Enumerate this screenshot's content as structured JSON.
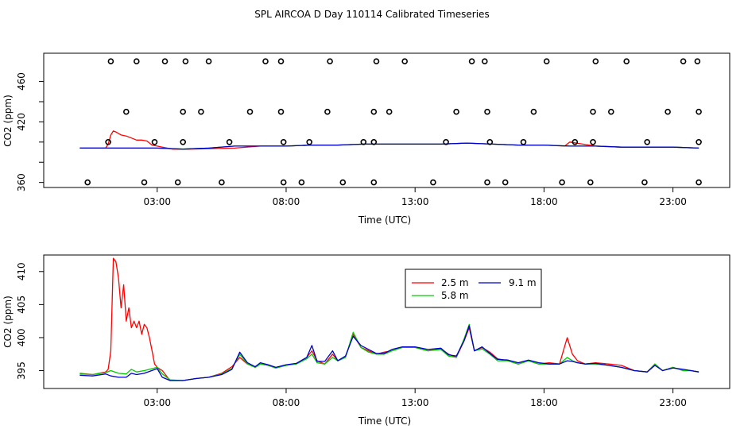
{
  "title": "SPL AIRCOA D  Day 110114  Calibrated Timeseries",
  "chart_data": [
    {
      "type": "line",
      "xlabel": "Time (UTC)",
      "ylabel": "CO2 (ppm)",
      "x_ticks": [
        "03:00",
        "08:00",
        "13:00",
        "18:00",
        "23:00"
      ],
      "x_tick_hours": [
        3,
        8,
        13,
        18,
        23
      ],
      "xlim_hours": [
        -1.4,
        25.2
      ],
      "y_ticks": [
        360,
        380,
        400,
        420,
        440,
        460
      ],
      "y_tick_labels": [
        "360",
        "",
        "",
        "420",
        "",
        "460"
      ],
      "ylim": [
        355,
        488
      ],
      "series": [
        {
          "color": "#ff0000",
          "x": [
            0,
            1,
            1.1,
            1.2,
            1.3,
            1.4,
            1.6,
            1.8,
            2.0,
            2.2,
            2.4,
            2.6,
            2.8,
            3.0,
            3.2,
            3.6,
            4.2,
            6,
            7,
            8,
            9,
            10,
            11,
            12,
            13,
            14,
            15,
            16,
            17,
            18,
            18.8,
            19.0,
            19.5,
            20,
            21,
            22,
            23,
            24
          ],
          "y": [
            394,
            394,
            398,
            407,
            411,
            410,
            407,
            406,
            404,
            402,
            402,
            401,
            397,
            396,
            395,
            393,
            393,
            394,
            396,
            396,
            397,
            397,
            398,
            398,
            398,
            398,
            399,
            398,
            397,
            397,
            396,
            400,
            398,
            396,
            395,
            395,
            395,
            394
          ]
        },
        {
          "color": "#00cc00",
          "x": [
            0,
            1,
            2,
            3,
            4,
            5,
            6,
            7,
            8,
            9,
            10,
            11,
            12,
            13,
            14,
            15,
            16,
            17,
            18,
            19,
            20,
            21,
            22,
            23,
            24
          ],
          "y": [
            394,
            394,
            394,
            394,
            393,
            394,
            396,
            396,
            396,
            397,
            397,
            398,
            398,
            398,
            398,
            399,
            398,
            397,
            397,
            396,
            396,
            395,
            395,
            395,
            394
          ]
        },
        {
          "color": "#0000cc",
          "x": [
            0,
            1,
            2,
            3,
            4,
            5,
            6,
            7,
            8,
            9,
            10,
            11,
            12,
            13,
            14,
            15,
            16,
            17,
            18,
            19,
            20,
            21,
            22,
            23,
            24
          ],
          "y": [
            394,
            394,
            394,
            394,
            393,
            394,
            396,
            396,
            396,
            397,
            397,
            398,
            398,
            398,
            398,
            399,
            398,
            397,
            397,
            396,
            396,
            395,
            395,
            395,
            394
          ]
        }
      ],
      "points": {
        "x": [
          1.2,
          2.2,
          3.3,
          4.1,
          5.0,
          7.2,
          7.8,
          9.7,
          11.5,
          12.6,
          15.2,
          15.7,
          18.1,
          20.0,
          21.2,
          23.4,
          23.95,
          1.8,
          4.0,
          4.7,
          6.6,
          7.8,
          9.6,
          11.4,
          12.0,
          14.6,
          15.8,
          17.6,
          19.9,
          20.6,
          22.8,
          24.0,
          1.1,
          2.9,
          4.0,
          5.8,
          7.9,
          8.9,
          11.0,
          11.4,
          14.2,
          15.9,
          17.2,
          19.2,
          19.9,
          22.0,
          24.0,
          0.3,
          2.5,
          3.8,
          5.5,
          7.9,
          8.6,
          10.2,
          11.4,
          13.7,
          15.8,
          16.5,
          18.7,
          19.8,
          21.9,
          24.0
        ],
        "y": [
          480,
          480,
          480,
          480,
          480,
          480,
          480,
          480,
          480,
          480,
          480,
          480,
          480,
          480,
          480,
          480,
          480,
          430,
          430,
          430,
          430,
          430,
          430,
          430,
          430,
          430,
          430,
          430,
          430,
          430,
          430,
          430,
          400,
          400,
          400,
          400,
          400,
          400,
          400,
          400,
          400,
          400,
          400,
          400,
          400,
          400,
          400,
          360,
          360,
          360,
          360,
          360,
          360,
          360,
          360,
          360,
          360,
          360,
          360,
          360,
          360,
          360
        ]
      }
    },
    {
      "type": "line",
      "xlabel": "Time (UTC)",
      "ylabel": "CO2 (ppm)",
      "x_ticks": [
        "03:00",
        "08:00",
        "13:00",
        "18:00",
        "23:00"
      ],
      "x_tick_hours": [
        3,
        8,
        13,
        18,
        23
      ],
      "xlim_hours": [
        -1.4,
        25.2
      ],
      "y_ticks": [
        395,
        400,
        405,
        410
      ],
      "y_tick_labels": [
        "395",
        "400",
        "405",
        "410"
      ],
      "ylim": [
        392.3,
        412.5
      ],
      "legend": {
        "position": "top-center",
        "entries": [
          "2.5 m",
          "5.8 m",
          "9.1 m"
        ]
      },
      "series": [
        {
          "name": "2.5 m",
          "color": "#ff0000",
          "x": [
            0,
            0.5,
            1.0,
            1.1,
            1.2,
            1.3,
            1.4,
            1.5,
            1.6,
            1.7,
            1.8,
            1.9,
            2.0,
            2.1,
            2.2,
            2.3,
            2.4,
            2.5,
            2.6,
            2.7,
            2.8,
            2.9,
            3.0,
            3.2,
            3.5,
            4.0,
            4.5,
            5.0,
            5.5,
            5.9,
            6.2,
            6.5,
            6.8,
            7.0,
            7.3,
            7.6,
            8.0,
            8.4,
            8.8,
            9.0,
            9.2,
            9.5,
            9.8,
            10.0,
            10.3,
            10.6,
            10.9,
            11.2,
            11.5,
            11.8,
            12.1,
            12.5,
            13.0,
            13.5,
            14.0,
            14.3,
            14.6,
            14.9,
            15.1,
            15.3,
            15.6,
            15.9,
            16.2,
            16.6,
            17.0,
            17.4,
            17.8,
            18.2,
            18.6,
            18.9,
            19.1,
            19.3,
            19.6,
            20.0,
            20.5,
            21.0,
            21.5,
            22.0,
            22.3,
            22.6,
            23.0,
            23.4,
            23.7,
            24.0
          ],
          "y": [
            394.6,
            394.4,
            394.8,
            395.2,
            398.0,
            412.0,
            411.5,
            409.0,
            404.5,
            408.0,
            402.5,
            404.5,
            401.5,
            402.5,
            401.5,
            402.5,
            400.5,
            402.0,
            401.5,
            400.0,
            398.0,
            396.0,
            395.5,
            395.0,
            393.5,
            393.5,
            393.8,
            394.0,
            394.6,
            395.6,
            397.0,
            396.0,
            395.5,
            396.0,
            395.8,
            395.4,
            395.8,
            396.1,
            397.0,
            398.0,
            396.5,
            396.0,
            397.5,
            396.5,
            397.0,
            400.5,
            398.5,
            398.0,
            397.5,
            397.8,
            398.0,
            398.5,
            398.5,
            398.0,
            398.3,
            397.5,
            397.0,
            399.5,
            401.5,
            398.0,
            398.5,
            397.8,
            396.8,
            396.5,
            396.0,
            396.5,
            396.0,
            396.2,
            396.0,
            400.0,
            397.5,
            396.5,
            396.0,
            396.2,
            396.0,
            395.8,
            395.0,
            394.8,
            396.0,
            395.0,
            395.5,
            395.0,
            395.0,
            394.8
          ]
        },
        {
          "name": "5.8 m",
          "color": "#00cc00",
          "x": [
            0,
            0.5,
            1.0,
            1.2,
            1.5,
            1.8,
            2.0,
            2.2,
            2.5,
            3.0,
            3.2,
            3.5,
            4.0,
            4.5,
            5.0,
            5.5,
            5.9,
            6.2,
            6.5,
            6.8,
            7.0,
            7.3,
            7.6,
            8.0,
            8.4,
            8.8,
            9.0,
            9.2,
            9.5,
            9.8,
            10.0,
            10.3,
            10.6,
            10.9,
            11.2,
            11.5,
            11.8,
            12.1,
            12.5,
            13.0,
            13.5,
            14.0,
            14.3,
            14.6,
            14.9,
            15.1,
            15.3,
            15.6,
            15.9,
            16.2,
            16.6,
            17.0,
            17.4,
            17.8,
            18.2,
            18.6,
            18.9,
            19.1,
            19.3,
            19.6,
            20.0,
            20.5,
            21.0,
            21.5,
            22.0,
            22.3,
            22.6,
            23.0,
            23.4,
            23.7,
            24.0
          ],
          "y": [
            394.5,
            394.4,
            394.7,
            395.0,
            394.6,
            394.5,
            395.2,
            394.8,
            395.0,
            395.5,
            394.5,
            393.6,
            393.5,
            393.8,
            394.0,
            394.5,
            395.3,
            397.5,
            396.0,
            395.5,
            396.0,
            395.8,
            395.4,
            395.8,
            396.0,
            396.8,
            397.5,
            396.2,
            396.0,
            397.0,
            396.5,
            397.0,
            400.8,
            398.5,
            397.8,
            397.5,
            397.5,
            398.0,
            398.5,
            398.5,
            398.0,
            398.2,
            397.2,
            397.0,
            399.8,
            402.0,
            398.0,
            398.3,
            397.5,
            396.5,
            396.5,
            396.0,
            396.5,
            396.0,
            396.0,
            396.0,
            397.0,
            396.5,
            396.2,
            396.0,
            396.0,
            395.8,
            395.5,
            395.0,
            394.8,
            396.0,
            395.0,
            395.5,
            395.0,
            395.0,
            394.8
          ]
        },
        {
          "name": "9.1 m",
          "color": "#0000cc",
          "x": [
            0,
            0.5,
            1.0,
            1.2,
            1.5,
            1.8,
            2.0,
            2.2,
            2.5,
            3.0,
            3.2,
            3.5,
            4.0,
            4.5,
            5.0,
            5.5,
            5.9,
            6.2,
            6.5,
            6.8,
            7.0,
            7.3,
            7.6,
            8.0,
            8.4,
            8.8,
            9.0,
            9.2,
            9.5,
            9.8,
            10.0,
            10.3,
            10.6,
            10.9,
            11.2,
            11.5,
            11.8,
            12.1,
            12.5,
            13.0,
            13.5,
            14.0,
            14.3,
            14.6,
            14.9,
            15.1,
            15.3,
            15.6,
            15.9,
            16.2,
            16.6,
            17.0,
            17.4,
            17.8,
            18.2,
            18.6,
            18.9,
            19.1,
            19.3,
            19.6,
            20.0,
            20.5,
            21.0,
            21.5,
            22.0,
            22.3,
            22.6,
            23.0,
            23.4,
            23.7,
            24.0
          ],
          "y": [
            394.3,
            394.2,
            394.5,
            394.2,
            394.0,
            394.0,
            394.6,
            394.4,
            394.6,
            395.3,
            394.0,
            393.5,
            393.5,
            393.8,
            394.0,
            394.4,
            395.2,
            397.8,
            396.2,
            395.6,
            396.2,
            395.9,
            395.5,
            395.9,
            396.1,
            397.0,
            398.8,
            396.4,
            396.4,
            398.0,
            396.5,
            397.2,
            400.2,
            398.8,
            398.2,
            397.6,
            397.6,
            398.2,
            398.6,
            398.6,
            398.2,
            398.4,
            397.4,
            397.2,
            399.5,
            401.8,
            398.0,
            398.6,
            397.6,
            396.7,
            396.6,
            396.2,
            396.6,
            396.2,
            396.0,
            396.0,
            396.5,
            396.4,
            396.2,
            396.0,
            396.1,
            395.8,
            395.5,
            395.0,
            394.8,
            395.8,
            395.0,
            395.4,
            395.2,
            395.0,
            394.8
          ]
        }
      ]
    }
  ]
}
